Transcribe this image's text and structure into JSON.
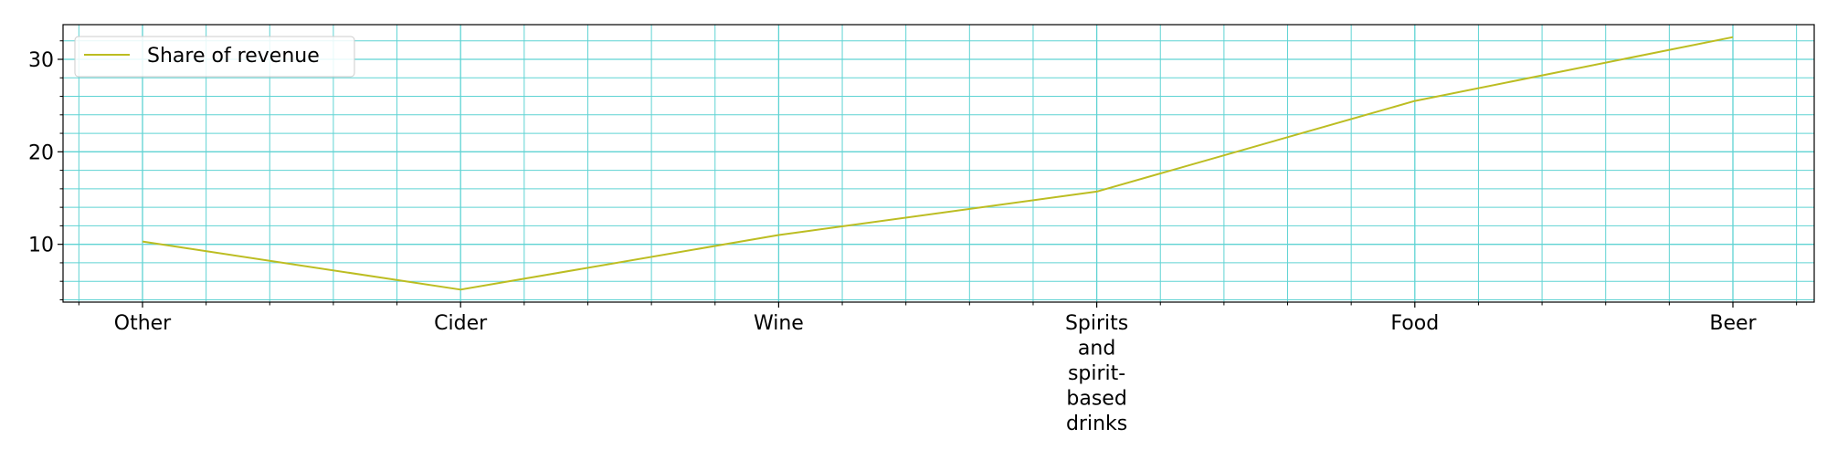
{
  "chart_data": {
    "type": "line",
    "categories": [
      "Other",
      "Cider",
      "Wine",
      "Spirits and spirit-based drinks",
      "Food",
      "Beer"
    ],
    "category_label_lines": [
      [
        "Other"
      ],
      [
        "Cider"
      ],
      [
        "Wine"
      ],
      [
        "Spirits",
        "and",
        "spirit-",
        "based",
        "drinks"
      ],
      [
        "Food"
      ],
      [
        "Beer"
      ]
    ],
    "series": [
      {
        "name": "Share of revenue",
        "values": [
          10.3,
          5.1,
          11.0,
          15.7,
          25.5,
          32.4
        ],
        "color": "#bcbd22"
      }
    ],
    "ylim": [
      3.75,
      33.75
    ],
    "yticks": [
      10,
      20,
      30
    ],
    "y_minor_step": 2,
    "x_minor_per_major": 5,
    "grid": true,
    "grid_color": "#5fd3d3",
    "legend_position": "top-left",
    "title": "",
    "xlabel": "",
    "ylabel": ""
  }
}
